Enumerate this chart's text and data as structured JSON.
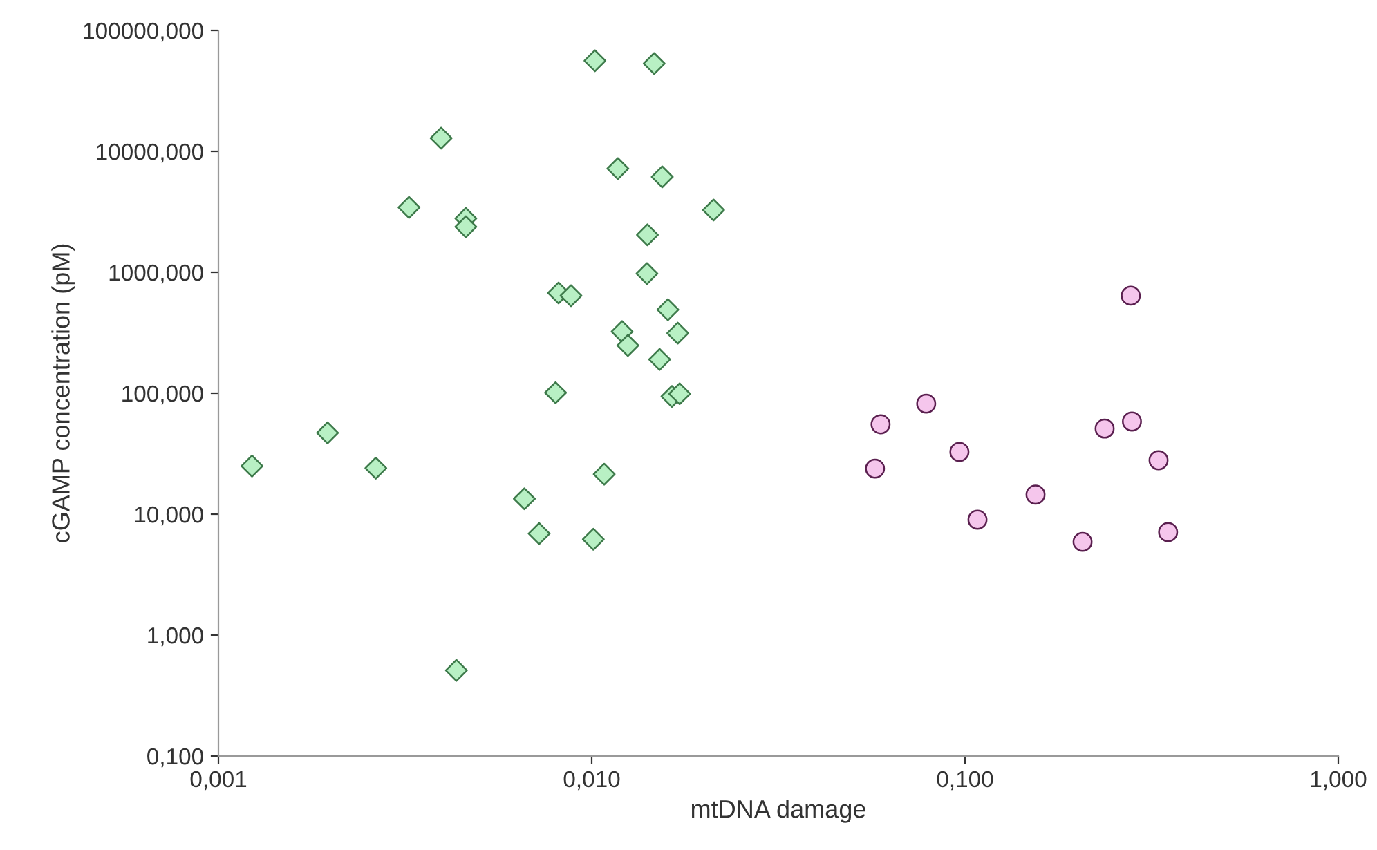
{
  "chart_data": {
    "type": "scatter",
    "xlabel": "mtDNA damage",
    "ylabel": "cGAMP concentration (pM)",
    "log": "xy",
    "grid": false,
    "xlim": [
      0.001,
      1
    ],
    "ylim": [
      0.1,
      100000
    ],
    "xticks": [
      {
        "value": 0.001,
        "label": "0,001"
      },
      {
        "value": 0.01,
        "label": "0,010"
      },
      {
        "value": 0.1,
        "label": "0,100"
      },
      {
        "value": 1,
        "label": "1,000"
      }
    ],
    "yticks": [
      {
        "value": 0.1,
        "label": "0,100"
      },
      {
        "value": 1,
        "label": "1,000"
      },
      {
        "value": 10,
        "label": "10,000"
      },
      {
        "value": 100,
        "label": "100,000"
      },
      {
        "value": 1000,
        "label": "1000,000"
      },
      {
        "value": 10000,
        "label": "10000,000"
      },
      {
        "value": 100000,
        "label": "100000,000"
      }
    ],
    "series": [
      {
        "color": "#b8f0c4",
        "marker": "diamond",
        "x": [
          0.00123,
          0.00196,
          0.00264,
          0.00324,
          0.00395,
          0.0046,
          0.0046,
          0.00434,
          0.0066,
          0.00723,
          0.00815,
          0.0088,
          0.008,
          0.0102,
          0.0101,
          0.0108,
          0.01175,
          0.01206,
          0.0125,
          0.01406,
          0.0141,
          0.0147,
          0.01545,
          0.0152,
          0.016,
          0.017,
          0.0164,
          0.0172,
          0.0212
        ],
        "values": [
          25,
          47,
          24,
          3440,
          12850,
          2790,
          2380,
          0.51,
          13.4,
          6.9,
          674,
          640,
          101,
          56100,
          6.2,
          21.4,
          7200,
          323,
          248,
          975,
          2040,
          53200,
          6150,
          190,
          491,
          314,
          94,
          99,
          3270
        ]
      },
      {
        "color": "#f5c6ec",
        "marker": "circle",
        "x": [
          0.0574,
          0.0594,
          0.0787,
          0.0966,
          0.108,
          0.1545,
          0.2065,
          0.2366,
          0.278,
          0.28,
          0.33,
          0.35
        ],
        "values": [
          23.8,
          55.3,
          82,
          32.7,
          9.0,
          14.5,
          5.9,
          51,
          640,
          58.3,
          27.9,
          7.1
        ]
      }
    ]
  }
}
